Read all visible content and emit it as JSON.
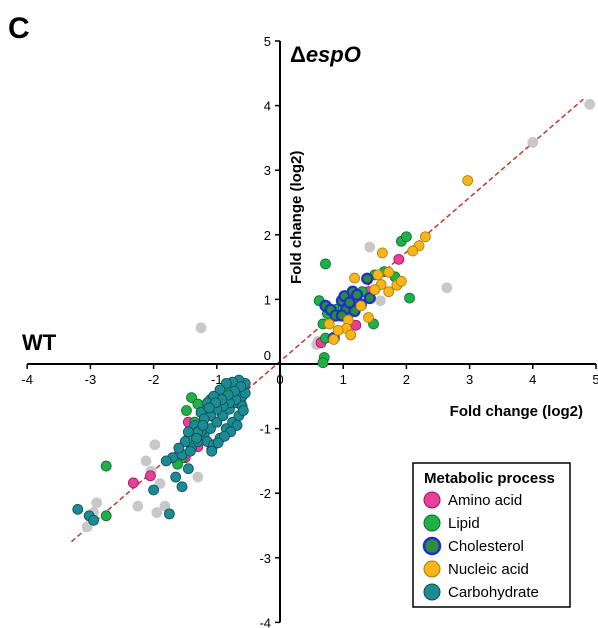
{
  "chart_data": {
    "type": "scatter",
    "panel_label": "C",
    "x_side_label": "WT",
    "y_side_label_prefix": "Δ",
    "y_side_label_italic": "espO",
    "xlabel": "Fold change (log2)",
    "ylabel": "Fold change (log2)",
    "xlim": [
      -4,
      5
    ],
    "ylim": [
      -4,
      5
    ],
    "xticks": [
      "-4",
      "-3",
      "-2",
      "-1",
      "0",
      "1",
      "2",
      "3",
      "4",
      "5"
    ],
    "yticks": [
      "-4",
      "-3",
      "-2",
      "-1",
      "0",
      "1",
      "2",
      "3",
      "4",
      "5"
    ],
    "axes_cross_at_origin": true,
    "grid": false,
    "reference_line": {
      "style": "dashed",
      "color": "#c0392b",
      "x": [
        -3.3,
        4.8
      ],
      "y": [
        -2.75,
        4.1
      ]
    },
    "legend": {
      "title": "Metabolic process",
      "position": "bottom-right"
    },
    "series": [
      {
        "name": "Other",
        "color": "#c8c8c8",
        "edge": "#c8c8c8",
        "in_legend": false,
        "points": [
          [
            4.9,
            4.02
          ],
          [
            4.0,
            3.43
          ],
          [
            2.64,
            1.18
          ],
          [
            1.59,
            0.98
          ],
          [
            1.42,
            1.81
          ],
          [
            0.6,
            0.35
          ],
          [
            0.58,
            0.3
          ],
          [
            -1.25,
            0.56
          ],
          [
            -1.98,
            -1.25
          ],
          [
            -2.04,
            -1.66
          ],
          [
            -1.9,
            -1.85
          ],
          [
            -1.95,
            -2.3
          ],
          [
            -2.25,
            -2.2
          ],
          [
            -2.9,
            -2.15
          ],
          [
            -2.95,
            -2.3
          ],
          [
            -3.05,
            -2.52
          ],
          [
            -2.12,
            -1.5
          ],
          [
            -1.82,
            -2.2
          ],
          [
            -1.3,
            -1.75
          ]
        ]
      },
      {
        "name": "Amino acid",
        "color": "#e8409a",
        "edge": "#a01060",
        "points": [
          [
            1.88,
            1.62
          ],
          [
            1.4,
            1.12
          ],
          [
            1.2,
            0.6
          ],
          [
            0.65,
            0.33
          ],
          [
            -1.08,
            -1.32
          ],
          [
            -1.3,
            -1.28
          ],
          [
            -1.62,
            -1.44
          ],
          [
            -1.5,
            -1.45
          ],
          [
            -2.05,
            -1.73
          ],
          [
            -2.32,
            -1.84
          ],
          [
            -1.45,
            -0.9
          ],
          [
            -1.0,
            -0.9
          ]
        ]
      },
      {
        "name": "Lipid",
        "color": "#1fb04a",
        "edge": "#0d6b2a",
        "points": [
          [
            0.72,
            1.55
          ],
          [
            0.62,
            0.98
          ],
          [
            0.75,
            0.78
          ],
          [
            0.68,
            0.62
          ],
          [
            0.72,
            0.4
          ],
          [
            0.7,
            0.1
          ],
          [
            0.68,
            0.02
          ],
          [
            0.9,
            0.85
          ],
          [
            1.0,
            0.88
          ],
          [
            1.3,
            1.12
          ],
          [
            1.5,
            1.38
          ],
          [
            1.65,
            1.43
          ],
          [
            1.82,
            1.35
          ],
          [
            1.92,
            1.9
          ],
          [
            2.0,
            1.97
          ],
          [
            2.05,
            1.02
          ],
          [
            1.48,
            0.62
          ],
          [
            -1.4,
            -0.52
          ],
          [
            -1.48,
            -0.72
          ],
          [
            -1.35,
            -0.9
          ],
          [
            -1.45,
            -1.15
          ],
          [
            -1.55,
            -1.45
          ],
          [
            -1.62,
            -1.55
          ],
          [
            -2.75,
            -1.58
          ],
          [
            -2.75,
            -2.35
          ],
          [
            -1.2,
            -0.7
          ],
          [
            -1.0,
            -0.6
          ],
          [
            -0.8,
            -0.5
          ],
          [
            -0.62,
            -0.6
          ],
          [
            -1.1,
            -0.55
          ],
          [
            -1.3,
            -0.62
          ],
          [
            -0.95,
            -0.45
          ],
          [
            -0.85,
            -0.35
          ],
          [
            -0.7,
            -0.32
          ]
        ]
      },
      {
        "name": "Cholesterol",
        "color": "#2f8a3a",
        "edge": "#1a2fd0",
        "points": [
          [
            0.72,
            0.9
          ],
          [
            0.8,
            0.84
          ],
          [
            0.88,
            0.75
          ],
          [
            0.98,
            0.98
          ],
          [
            1.02,
            1.05
          ],
          [
            1.05,
            0.85
          ],
          [
            1.1,
            0.95
          ],
          [
            1.15,
            1.12
          ],
          [
            1.22,
            1.07
          ],
          [
            1.28,
            0.92
          ],
          [
            1.38,
            1.32
          ],
          [
            1.42,
            1.02
          ],
          [
            0.85,
            0.4
          ],
          [
            0.98,
            0.75
          ],
          [
            1.18,
            0.82
          ]
        ]
      },
      {
        "name": "Nucleic acid",
        "color": "#f6b51a",
        "edge": "#b07b00",
        "points": [
          [
            2.97,
            2.84
          ],
          [
            2.3,
            1.97
          ],
          [
            2.2,
            1.83
          ],
          [
            2.1,
            1.75
          ],
          [
            1.62,
            1.72
          ],
          [
            1.6,
            1.23
          ],
          [
            1.72,
            1.12
          ],
          [
            1.85,
            1.22
          ],
          [
            1.92,
            1.28
          ],
          [
            1.72,
            1.42
          ],
          [
            1.55,
            1.38
          ],
          [
            1.5,
            1.15
          ],
          [
            1.18,
            1.33
          ],
          [
            1.28,
            0.9
          ],
          [
            1.4,
            0.72
          ],
          [
            1.08,
            0.68
          ],
          [
            1.05,
            0.55
          ],
          [
            1.12,
            0.45
          ],
          [
            0.92,
            0.52
          ],
          [
            0.85,
            0.38
          ],
          [
            0.78,
            0.62
          ]
        ]
      },
      {
        "name": "Carbohydrate",
        "color": "#1c8b94",
        "edge": "#0c4f55",
        "points": [
          [
            -3.2,
            -2.25
          ],
          [
            -3.02,
            -2.35
          ],
          [
            -2.95,
            -2.42
          ],
          [
            -2.0,
            -1.95
          ],
          [
            -1.75,
            -2.32
          ],
          [
            -1.55,
            -1.9
          ],
          [
            -1.65,
            -1.75
          ],
          [
            -1.45,
            -1.62
          ],
          [
            -1.55,
            -1.4
          ],
          [
            -1.4,
            -1.3
          ],
          [
            -1.3,
            -1.2
          ],
          [
            -1.2,
            -1.1
          ],
          [
            -1.1,
            -1.0
          ],
          [
            -1.0,
            -0.9
          ],
          [
            -0.9,
            -0.8
          ],
          [
            -0.8,
            -0.7
          ],
          [
            -0.7,
            -0.6
          ],
          [
            -0.6,
            -0.5
          ],
          [
            -0.55,
            -0.3
          ],
          [
            -0.65,
            -0.25
          ],
          [
            -0.75,
            -0.28
          ],
          [
            -0.85,
            -0.3
          ],
          [
            -0.95,
            -0.4
          ],
          [
            -1.05,
            -0.5
          ],
          [
            -1.15,
            -0.6
          ],
          [
            -1.25,
            -0.75
          ],
          [
            -1.35,
            -0.95
          ],
          [
            -1.25,
            -1.05
          ],
          [
            -1.15,
            -1.2
          ],
          [
            -1.05,
            -1.25
          ],
          [
            -0.95,
            -1.15
          ],
          [
            -0.85,
            -1.0
          ],
          [
            -0.75,
            -0.9
          ],
          [
            -0.65,
            -0.8
          ],
          [
            -0.6,
            -0.65
          ],
          [
            -0.7,
            -0.55
          ],
          [
            -0.8,
            -0.6
          ],
          [
            -0.9,
            -0.65
          ],
          [
            -1.0,
            -0.7
          ],
          [
            -1.1,
            -0.8
          ],
          [
            -1.2,
            -0.85
          ],
          [
            -1.3,
            -1.05
          ],
          [
            -1.45,
            -1.05
          ],
          [
            -1.5,
            -1.2
          ],
          [
            -1.6,
            -1.3
          ],
          [
            -1.7,
            -1.45
          ],
          [
            -1.8,
            -1.5
          ],
          [
            -0.55,
            -0.45
          ],
          [
            -0.62,
            -0.35
          ],
          [
            -0.72,
            -0.42
          ],
          [
            -0.82,
            -0.48
          ],
          [
            -0.92,
            -0.55
          ],
          [
            -1.02,
            -0.6
          ],
          [
            -1.12,
            -0.68
          ],
          [
            -1.22,
            -0.95
          ],
          [
            -1.32,
            -1.15
          ],
          [
            -1.42,
            -1.35
          ],
          [
            -0.58,
            -0.72
          ],
          [
            -0.68,
            -0.95
          ],
          [
            -0.78,
            -1.05
          ],
          [
            -0.88,
            -1.12
          ],
          [
            -0.98,
            -1.22
          ],
          [
            -1.08,
            -1.35
          ]
        ]
      }
    ]
  }
}
